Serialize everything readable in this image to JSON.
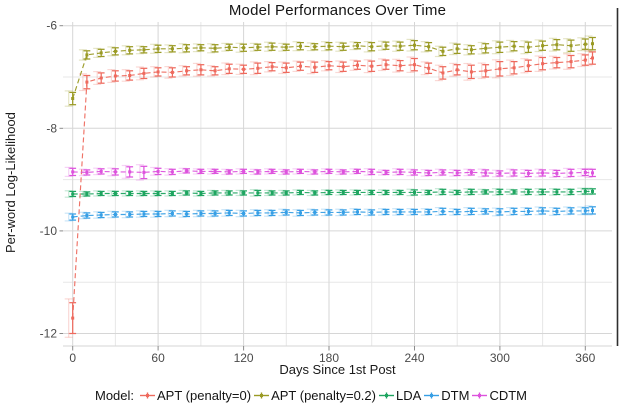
{
  "title": "Model Performances Over Time",
  "axes": {
    "x_label": "Days Since 1st Post",
    "y_label": "Per-word Log-Likelihood"
  },
  "legend": {
    "label": "Model:",
    "position": "bottom"
  },
  "chart_data": {
    "type": "line",
    "title": "Model Performances Over Time",
    "xlabel": "Days Since 1st Post",
    "ylabel": "Per-word Log-Likelihood",
    "xlim": [
      -7,
      379
    ],
    "ylim": [
      -12.25,
      -5.92
    ],
    "x_ticks": [
      0,
      60,
      120,
      180,
      240,
      300,
      360
    ],
    "x_minor_ticks": [
      30,
      90,
      150,
      210,
      270,
      330
    ],
    "y_ticks": [
      -6,
      -8,
      -10,
      -12
    ],
    "y_minor_ticks": [
      -7,
      -9,
      -11
    ],
    "grid": "major+minor",
    "legend_position": "bottom",
    "error_bars": true,
    "line_style": "dashed",
    "x": [
      0,
      10,
      20,
      30,
      40,
      50,
      60,
      70,
      80,
      90,
      100,
      110,
      120,
      130,
      140,
      150,
      160,
      170,
      180,
      190,
      200,
      210,
      220,
      230,
      240,
      250,
      260,
      270,
      280,
      290,
      300,
      310,
      320,
      330,
      340,
      350,
      360,
      365
    ],
    "series": [
      {
        "name": "APT (penalty=0)",
        "color": "#ee6a5e",
        "y": [
          -11.7,
          -7.1,
          -7.02,
          -6.98,
          -6.97,
          -6.93,
          -6.9,
          -6.91,
          -6.88,
          -6.86,
          -6.88,
          -6.84,
          -6.85,
          -6.83,
          -6.8,
          -6.82,
          -6.79,
          -6.81,
          -6.78,
          -6.8,
          -6.77,
          -6.79,
          -6.76,
          -6.78,
          -6.76,
          -6.83,
          -6.92,
          -6.86,
          -6.9,
          -6.88,
          -6.84,
          -6.82,
          -6.78,
          -6.74,
          -6.72,
          -6.7,
          -6.67,
          -6.63
        ],
        "err": [
          0.3,
          0.13,
          0.1,
          0.1,
          0.09,
          0.1,
          0.08,
          0.09,
          0.08,
          0.1,
          0.08,
          0.09,
          0.08,
          0.1,
          0.08,
          0.09,
          0.08,
          0.1,
          0.08,
          0.09,
          0.08,
          0.1,
          0.09,
          0.1,
          0.12,
          0.1,
          0.12,
          0.1,
          0.13,
          0.12,
          0.14,
          0.12,
          0.11,
          0.12,
          0.1,
          0.12,
          0.1,
          0.12
        ]
      },
      {
        "name": "APT (penalty=0.2)",
        "color": "#9a9a24",
        "y": [
          -7.42,
          -6.57,
          -6.53,
          -6.5,
          -6.48,
          -6.47,
          -6.45,
          -6.45,
          -6.44,
          -6.43,
          -6.44,
          -6.42,
          -6.43,
          -6.42,
          -6.41,
          -6.42,
          -6.4,
          -6.41,
          -6.4,
          -6.41,
          -6.39,
          -6.41,
          -6.39,
          -6.4,
          -6.38,
          -6.41,
          -6.5,
          -6.45,
          -6.47,
          -6.44,
          -6.42,
          -6.4,
          -6.42,
          -6.39,
          -6.37,
          -6.39,
          -6.36,
          -6.35
        ],
        "err": [
          0.12,
          0.08,
          0.07,
          0.07,
          0.07,
          0.06,
          0.07,
          0.06,
          0.07,
          0.06,
          0.07,
          0.06,
          0.07,
          0.06,
          0.07,
          0.06,
          0.07,
          0.06,
          0.07,
          0.07,
          0.06,
          0.08,
          0.07,
          0.08,
          0.09,
          0.08,
          0.08,
          0.09,
          0.08,
          0.09,
          0.1,
          0.09,
          0.1,
          0.09,
          0.1,
          0.11,
          0.1,
          0.12
        ]
      },
      {
        "name": "LDA",
        "color": "#1ea560",
        "y": [
          -9.28,
          -9.28,
          -9.27,
          -9.27,
          -9.27,
          -9.27,
          -9.27,
          -9.27,
          -9.26,
          -9.27,
          -9.26,
          -9.26,
          -9.26,
          -9.26,
          -9.26,
          -9.26,
          -9.25,
          -9.26,
          -9.25,
          -9.25,
          -9.25,
          -9.25,
          -9.25,
          -9.25,
          -9.25,
          -9.25,
          -9.24,
          -9.25,
          -9.24,
          -9.24,
          -9.24,
          -9.24,
          -9.24,
          -9.24,
          -9.24,
          -9.24,
          -9.23,
          -9.23
        ],
        "err": [
          0.05,
          0.04,
          0.04,
          0.04,
          0.04,
          0.04,
          0.04,
          0.04,
          0.04,
          0.04,
          0.04,
          0.04,
          0.04,
          0.05,
          0.04,
          0.04,
          0.04,
          0.04,
          0.04,
          0.04,
          0.04,
          0.04,
          0.04,
          0.04,
          0.05,
          0.04,
          0.05,
          0.04,
          0.05,
          0.04,
          0.05,
          0.04,
          0.05,
          0.05,
          0.05,
          0.05,
          0.05,
          0.05
        ]
      },
      {
        "name": "DTM",
        "color": "#379fe5",
        "y": [
          -9.73,
          -9.7,
          -9.69,
          -9.68,
          -9.68,
          -9.67,
          -9.67,
          -9.66,
          -9.67,
          -9.66,
          -9.66,
          -9.65,
          -9.66,
          -9.65,
          -9.65,
          -9.64,
          -9.65,
          -9.64,
          -9.64,
          -9.64,
          -9.63,
          -9.64,
          -9.63,
          -9.63,
          -9.63,
          -9.63,
          -9.62,
          -9.63,
          -9.62,
          -9.62,
          -9.63,
          -9.62,
          -9.62,
          -9.61,
          -9.62,
          -9.61,
          -9.61,
          -9.6
        ],
        "err": [
          0.06,
          0.05,
          0.05,
          0.05,
          0.05,
          0.05,
          0.05,
          0.05,
          0.05,
          0.05,
          0.05,
          0.05,
          0.05,
          0.05,
          0.05,
          0.05,
          0.05,
          0.05,
          0.05,
          0.05,
          0.05,
          0.05,
          0.05,
          0.05,
          0.05,
          0.05,
          0.06,
          0.05,
          0.06,
          0.05,
          0.06,
          0.06,
          0.06,
          0.06,
          0.06,
          0.06,
          0.06,
          0.07
        ]
      },
      {
        "name": "CDTM",
        "color": "#dd53dd",
        "y": [
          -8.85,
          -8.86,
          -8.84,
          -8.85,
          -8.85,
          -8.86,
          -8.84,
          -8.85,
          -8.83,
          -8.84,
          -8.84,
          -8.85,
          -8.84,
          -8.85,
          -8.84,
          -8.85,
          -8.84,
          -8.85,
          -8.84,
          -8.85,
          -8.84,
          -8.85,
          -8.86,
          -8.85,
          -8.86,
          -8.87,
          -8.86,
          -8.87,
          -8.86,
          -8.87,
          -8.88,
          -8.87,
          -8.88,
          -8.87,
          -8.88,
          -8.87,
          -8.86,
          -8.87
        ],
        "err": [
          0.07,
          0.05,
          0.05,
          0.06,
          0.1,
          0.12,
          0.06,
          0.05,
          0.04,
          0.04,
          0.04,
          0.04,
          0.04,
          0.04,
          0.04,
          0.04,
          0.04,
          0.04,
          0.04,
          0.04,
          0.04,
          0.05,
          0.04,
          0.05,
          0.05,
          0.05,
          0.05,
          0.05,
          0.05,
          0.06,
          0.05,
          0.06,
          0.06,
          0.06,
          0.06,
          0.07,
          0.06,
          0.07
        ]
      }
    ],
    "style_colors": {
      "grid_major": "#d6d6d6",
      "grid_minor": "#e7e7e7",
      "tick_label": "#4a4a4a",
      "axis_tick": "#8a8a8a",
      "figure_right_border": "#2f2f2f"
    }
  }
}
